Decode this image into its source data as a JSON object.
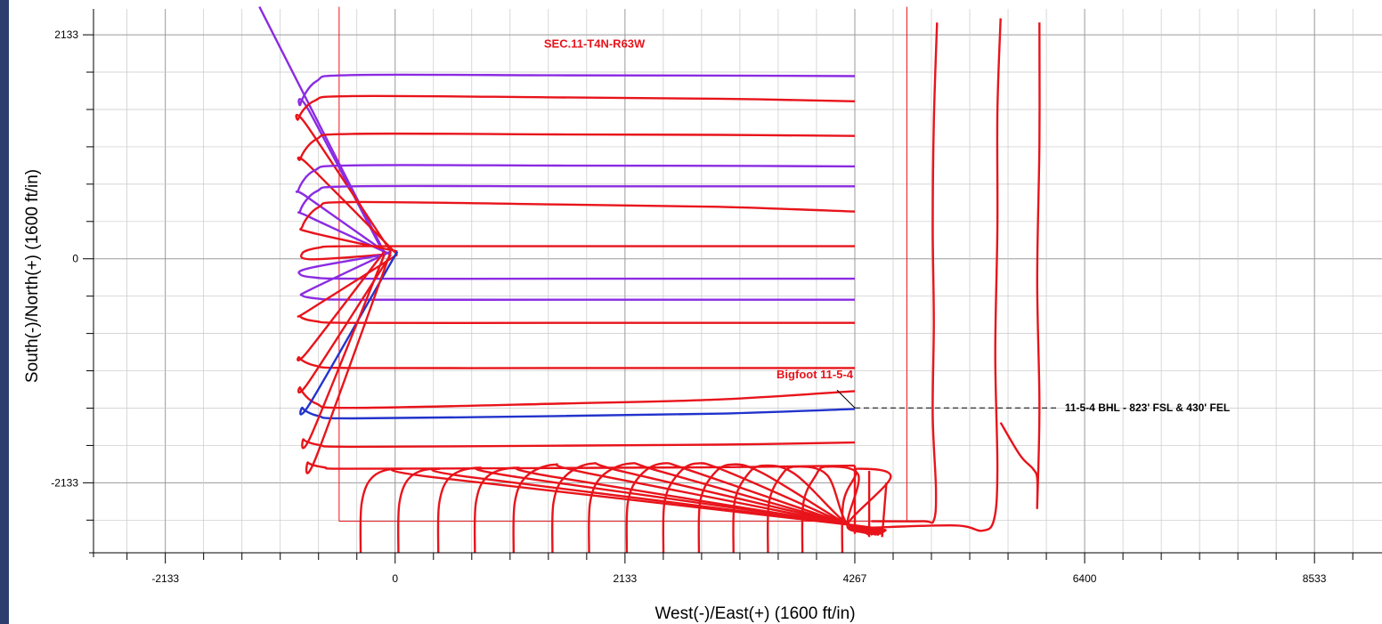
{
  "chart_data": {
    "type": "line",
    "xlabel": "West(-)/East(+) (1600 ft/in)",
    "ylabel": "South(-)/North(+) (1600 ft/in)",
    "x_ticks": [
      "-2133",
      "0",
      "2133",
      "4267",
      "6400",
      "8533"
    ],
    "x_tick_values": [
      -2133,
      0,
      2133,
      4267,
      6400,
      8533
    ],
    "y_ticks": [
      "2133",
      "0",
      "-2133"
    ],
    "y_tick_values": [
      2133,
      0,
      -2133
    ],
    "xlim": [
      -2800,
      9160
    ],
    "ylim": [
      -2800,
      2380
    ],
    "grid": true,
    "colors": {
      "red": "#e8141b",
      "purple": "#8b2be2",
      "blue": "#2233cc",
      "grid": "#c8c8c8",
      "section": "#e8141b"
    },
    "section_lines": {
      "left_x": -520,
      "right_x": 4750,
      "bottom_y": -2500,
      "top_y": 2400
    },
    "annotations": {
      "section_label": "SEC.11-T4N-R63W",
      "well_label": "Bigfoot  11-5-4",
      "bhl_label": "11-5-4 BHL - 823' FSL & 430' FEL"
    },
    "annotation_anchors": {
      "section_label": [
        1850,
        2010
      ],
      "well_label": [
        3540,
        -1140
      ],
      "bhl_point": [
        4267,
        -1420
      ],
      "bhl_label_end": [
        6150,
        -1420
      ]
    },
    "north_wells": [
      {
        "color": "purple",
        "y": 1750,
        "y_end": 1740,
        "x_turn": -880,
        "y_turn": 1410
      },
      {
        "color": "red",
        "y": 1550,
        "y_end": 1500,
        "x_turn": -900,
        "y_turn": 1270
      },
      {
        "color": "red",
        "y": 1190,
        "y_end": 1170,
        "x_turn": -880,
        "y_turn": 890
      },
      {
        "color": "purple",
        "y": 890,
        "y_end": 880,
        "x_turn": -900,
        "y_turn": 590
      },
      {
        "color": "purple",
        "y": 690,
        "y_end": 690,
        "x_turn": -880,
        "y_turn": 400
      },
      {
        "color": "red",
        "y": 540,
        "y_end": 450,
        "x_turn": -860,
        "y_turn": 250
      },
      {
        "color": "red",
        "y": 120,
        "y_end": 120,
        "x_turn": -860,
        "y_turn": -5
      }
    ],
    "south_wells": [
      {
        "color": "purple",
        "y": -190,
        "y_end": -190,
        "x_turn": -880,
        "y_turn": -90
      },
      {
        "color": "purple",
        "y": -390,
        "y_end": -390,
        "x_turn": -860,
        "y_turn": -290
      },
      {
        "color": "red",
        "y": -610,
        "y_end": -610,
        "x_turn": -880,
        "y_turn": -490
      },
      {
        "color": "red",
        "y": -1040,
        "y_end": -1040,
        "x_turn": -890,
        "y_turn": -880
      },
      {
        "color": "red",
        "y": -1420,
        "y_end": -1260,
        "x_turn": -880,
        "y_turn": -1170
      },
      {
        "color": "blue",
        "y": -1520,
        "y_end": -1430,
        "x_turn": -860,
        "y_turn": -1360
      },
      {
        "color": "red",
        "y": -1790,
        "y_end": -1750,
        "x_turn": -850,
        "y_turn": -1660
      },
      {
        "color": "red",
        "y": -2000,
        "y_end": -1970,
        "x_turn": -810,
        "y_turn": -1880
      }
    ],
    "bottom_fan": {
      "hub": [
        4400,
        -2590
      ],
      "wells": [
        {
          "x_bottom": -320,
          "peak_x": 50,
          "peak_y": -2000
        },
        {
          "x_bottom": 30,
          "peak_x": 400,
          "peak_y": -2000
        },
        {
          "x_bottom": 400,
          "peak_x": 780,
          "peak_y": -1990
        },
        {
          "x_bottom": 740,
          "peak_x": 1130,
          "peak_y": -1990
        },
        {
          "x_bottom": 1100,
          "peak_x": 1480,
          "peak_y": -1960
        },
        {
          "x_bottom": 1460,
          "peak_x": 1830,
          "peak_y": -1950
        },
        {
          "x_bottom": 1800,
          "peak_x": 2180,
          "peak_y": -1950
        },
        {
          "x_bottom": 2150,
          "peak_x": 2480,
          "peak_y": -1950
        },
        {
          "x_bottom": 2490,
          "peak_x": 2790,
          "peak_y": -1950
        },
        {
          "x_bottom": 2820,
          "peak_x": 3110,
          "peak_y": -1960
        },
        {
          "x_bottom": 3140,
          "peak_x": 3410,
          "peak_y": -1970
        },
        {
          "x_bottom": 3460,
          "peak_x": 3710,
          "peak_y": -1980
        },
        {
          "x_bottom": 3780,
          "peak_x": 4000,
          "peak_y": -1980
        },
        {
          "x_bottom": 4150,
          "peak_x": 4300,
          "peak_y": -2000
        }
      ]
    },
    "east_wells": [
      {
        "color": "red",
        "points": [
          [
            4420,
            -2500
          ],
          [
            4900,
            -2500
          ],
          [
            5000,
            -2490
          ],
          [
            5020,
            -2200
          ],
          [
            4990,
            -1500
          ],
          [
            5000,
            -600
          ],
          [
            4990,
            300
          ],
          [
            5000,
            1300
          ],
          [
            5030,
            2250
          ]
        ]
      },
      {
        "color": "red",
        "points": [
          [
            4420,
            -2560
          ],
          [
            5200,
            -2540
          ],
          [
            5450,
            -2590
          ],
          [
            5560,
            -2480
          ],
          [
            5590,
            -2000
          ],
          [
            5570,
            -900
          ],
          [
            5590,
            300
          ],
          [
            5590,
            1400
          ],
          [
            5620,
            2290
          ]
        ]
      },
      {
        "color": "red",
        "points": [
          [
            5620,
            -1560
          ],
          [
            5800,
            -1870
          ],
          [
            5920,
            -2000
          ],
          [
            5960,
            -2090
          ],
          [
            5960,
            -2350
          ],
          [
            5980,
            -1400
          ],
          [
            5960,
            -200
          ],
          [
            5980,
            1100
          ],
          [
            5980,
            2250
          ]
        ]
      }
    ]
  }
}
